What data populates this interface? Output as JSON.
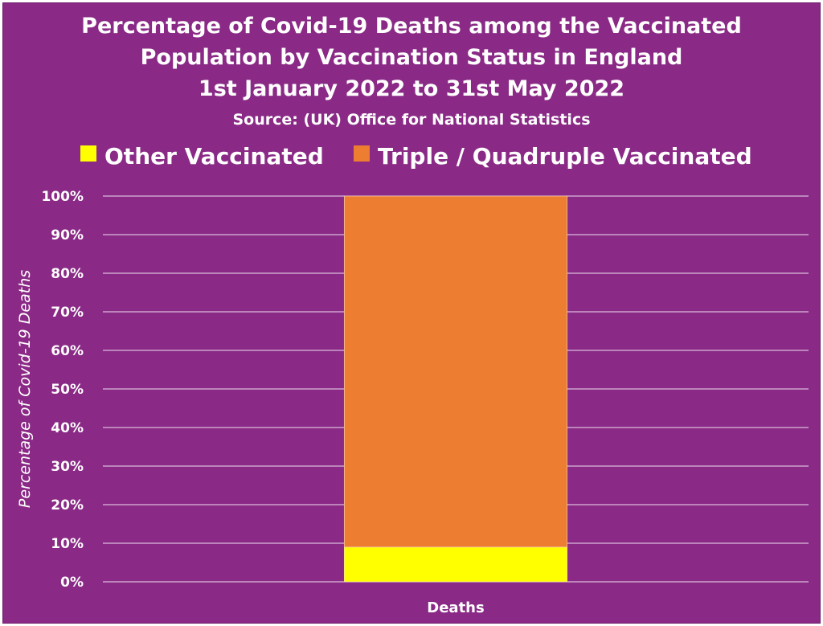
{
  "chart_data": {
    "type": "bar",
    "stacked": true,
    "title": [
      "Percentage of Covid-19 Deaths among the Vaccinated",
      "Population by Vaccination Status in England",
      "1st January 2022 to 31st May 2022"
    ],
    "subtitle": "Source:  (UK) Office for National Statistics",
    "categories": [
      "Deaths"
    ],
    "series": [
      {
        "name": "Other Vaccinated",
        "values": [
          9
        ],
        "color": "#ffff00"
      },
      {
        "name": "Triple / Quadruple Vaccinated",
        "values": [
          91
        ],
        "color": "#ed7d31"
      }
    ],
    "xlabel": "",
    "ylabel": "Percentage of Covid-19 Deaths",
    "ylim": [
      0,
      100
    ],
    "yticks": [
      "0%",
      "10%",
      "20%",
      "30%",
      "40%",
      "50%",
      "60%",
      "70%",
      "80%",
      "90%",
      "100%"
    ],
    "grid": true,
    "legend_position": "top",
    "background_color": "#8a2a86",
    "text_color": "#ffffff"
  }
}
